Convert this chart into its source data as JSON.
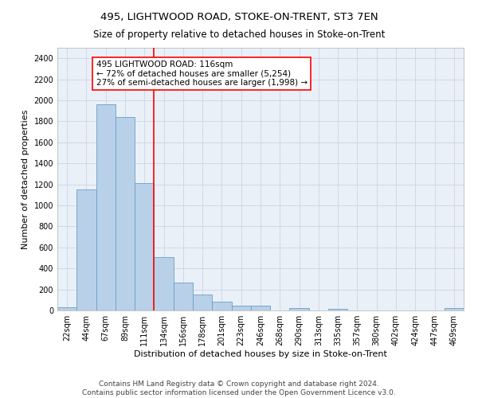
{
  "title": "495, LIGHTWOOD ROAD, STOKE-ON-TRENT, ST3 7EN",
  "subtitle": "Size of property relative to detached houses in Stoke-on-Trent",
  "xlabel": "Distribution of detached houses by size in Stoke-on-Trent",
  "ylabel": "Number of detached properties",
  "categories": [
    "22sqm",
    "44sqm",
    "67sqm",
    "89sqm",
    "111sqm",
    "134sqm",
    "156sqm",
    "178sqm",
    "201sqm",
    "223sqm",
    "246sqm",
    "268sqm",
    "290sqm",
    "313sqm",
    "335sqm",
    "357sqm",
    "380sqm",
    "402sqm",
    "424sqm",
    "447sqm",
    "469sqm"
  ],
  "values": [
    30,
    1150,
    1960,
    1840,
    1210,
    510,
    265,
    155,
    80,
    48,
    42,
    0,
    22,
    0,
    15,
    0,
    0,
    0,
    0,
    0,
    20
  ],
  "bar_color": "#b8d0e8",
  "bar_edge_color": "#6a9fc8",
  "red_line_x": 4,
  "annotation_text": "495 LIGHTWOOD ROAD: 116sqm\n← 72% of detached houses are smaller (5,254)\n27% of semi-detached houses are larger (1,998) →",
  "annotation_box_color": "white",
  "annotation_box_edge": "red",
  "ylim": [
    0,
    2500
  ],
  "yticks": [
    0,
    200,
    400,
    600,
    800,
    1000,
    1200,
    1400,
    1600,
    1800,
    2000,
    2200,
    2400
  ],
  "grid_color": "#d0d8e8",
  "background_color": "#eaf0f8",
  "footer_line1": "Contains HM Land Registry data © Crown copyright and database right 2024.",
  "footer_line2": "Contains public sector information licensed under the Open Government Licence v3.0.",
  "title_fontsize": 9.5,
  "subtitle_fontsize": 8.5,
  "xlabel_fontsize": 8,
  "ylabel_fontsize": 8,
  "tick_fontsize": 7,
  "annotation_fontsize": 7.5,
  "footer_fontsize": 6.5
}
